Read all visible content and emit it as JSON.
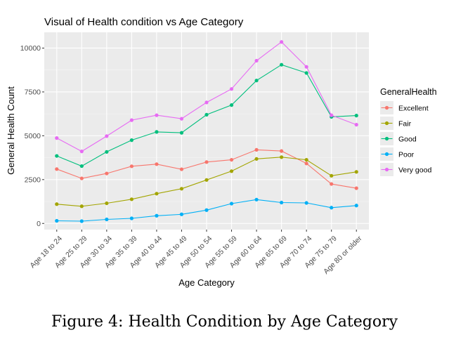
{
  "caption": "Figure 4: Health Condition by Age Category",
  "chart_data": {
    "type": "line",
    "title": "Visual of Health condition vs Age Category",
    "xlabel": "Age Category",
    "ylabel": "General Health Count",
    "ylim": [
      -350,
      10900
    ],
    "yticks": [
      0,
      2500,
      5000,
      7500,
      10000
    ],
    "ytick_labels": [
      "0",
      "2500",
      "5000",
      "7500",
      "10000"
    ],
    "grid": true,
    "legend_position": "right",
    "legend_title": "GeneralHealth",
    "categories": [
      "Age 18 to 24",
      "Age 25 to 29",
      "Age 30 to 34",
      "Age 35 to 39",
      "Age 40 to 44",
      "Age 45 to 49",
      "Age 50 to 54",
      "Age 55 to 59",
      "Age 60 to 64",
      "Age 65 to 69",
      "Age 70 to 74",
      "Age 75 to 79",
      "Age 80 or older"
    ],
    "series": [
      {
        "name": "Excellent",
        "color": "#F8766D",
        "values": [
          3100,
          2570,
          2850,
          3260,
          3380,
          3090,
          3500,
          3630,
          4200,
          4130,
          3420,
          2250,
          2010
        ]
      },
      {
        "name": "Fair",
        "color": "#A3A500",
        "values": [
          1100,
          980,
          1150,
          1380,
          1700,
          1980,
          2480,
          2980,
          3680,
          3780,
          3630,
          2720,
          2940
        ]
      },
      {
        "name": "Good",
        "color": "#00BF7D",
        "values": [
          3850,
          3270,
          4080,
          4750,
          5220,
          5170,
          6200,
          6750,
          8150,
          9050,
          8580,
          6080,
          6150
        ]
      },
      {
        "name": "Poor",
        "color": "#00B0F6",
        "values": [
          150,
          130,
          230,
          290,
          440,
          520,
          760,
          1130,
          1360,
          1190,
          1170,
          900,
          1020
        ]
      },
      {
        "name": "Very good",
        "color": "#E76BF3",
        "values": [
          4870,
          4110,
          4980,
          5890,
          6170,
          5970,
          6900,
          7670,
          9280,
          10350,
          8930,
          6170,
          5630
        ]
      }
    ]
  }
}
